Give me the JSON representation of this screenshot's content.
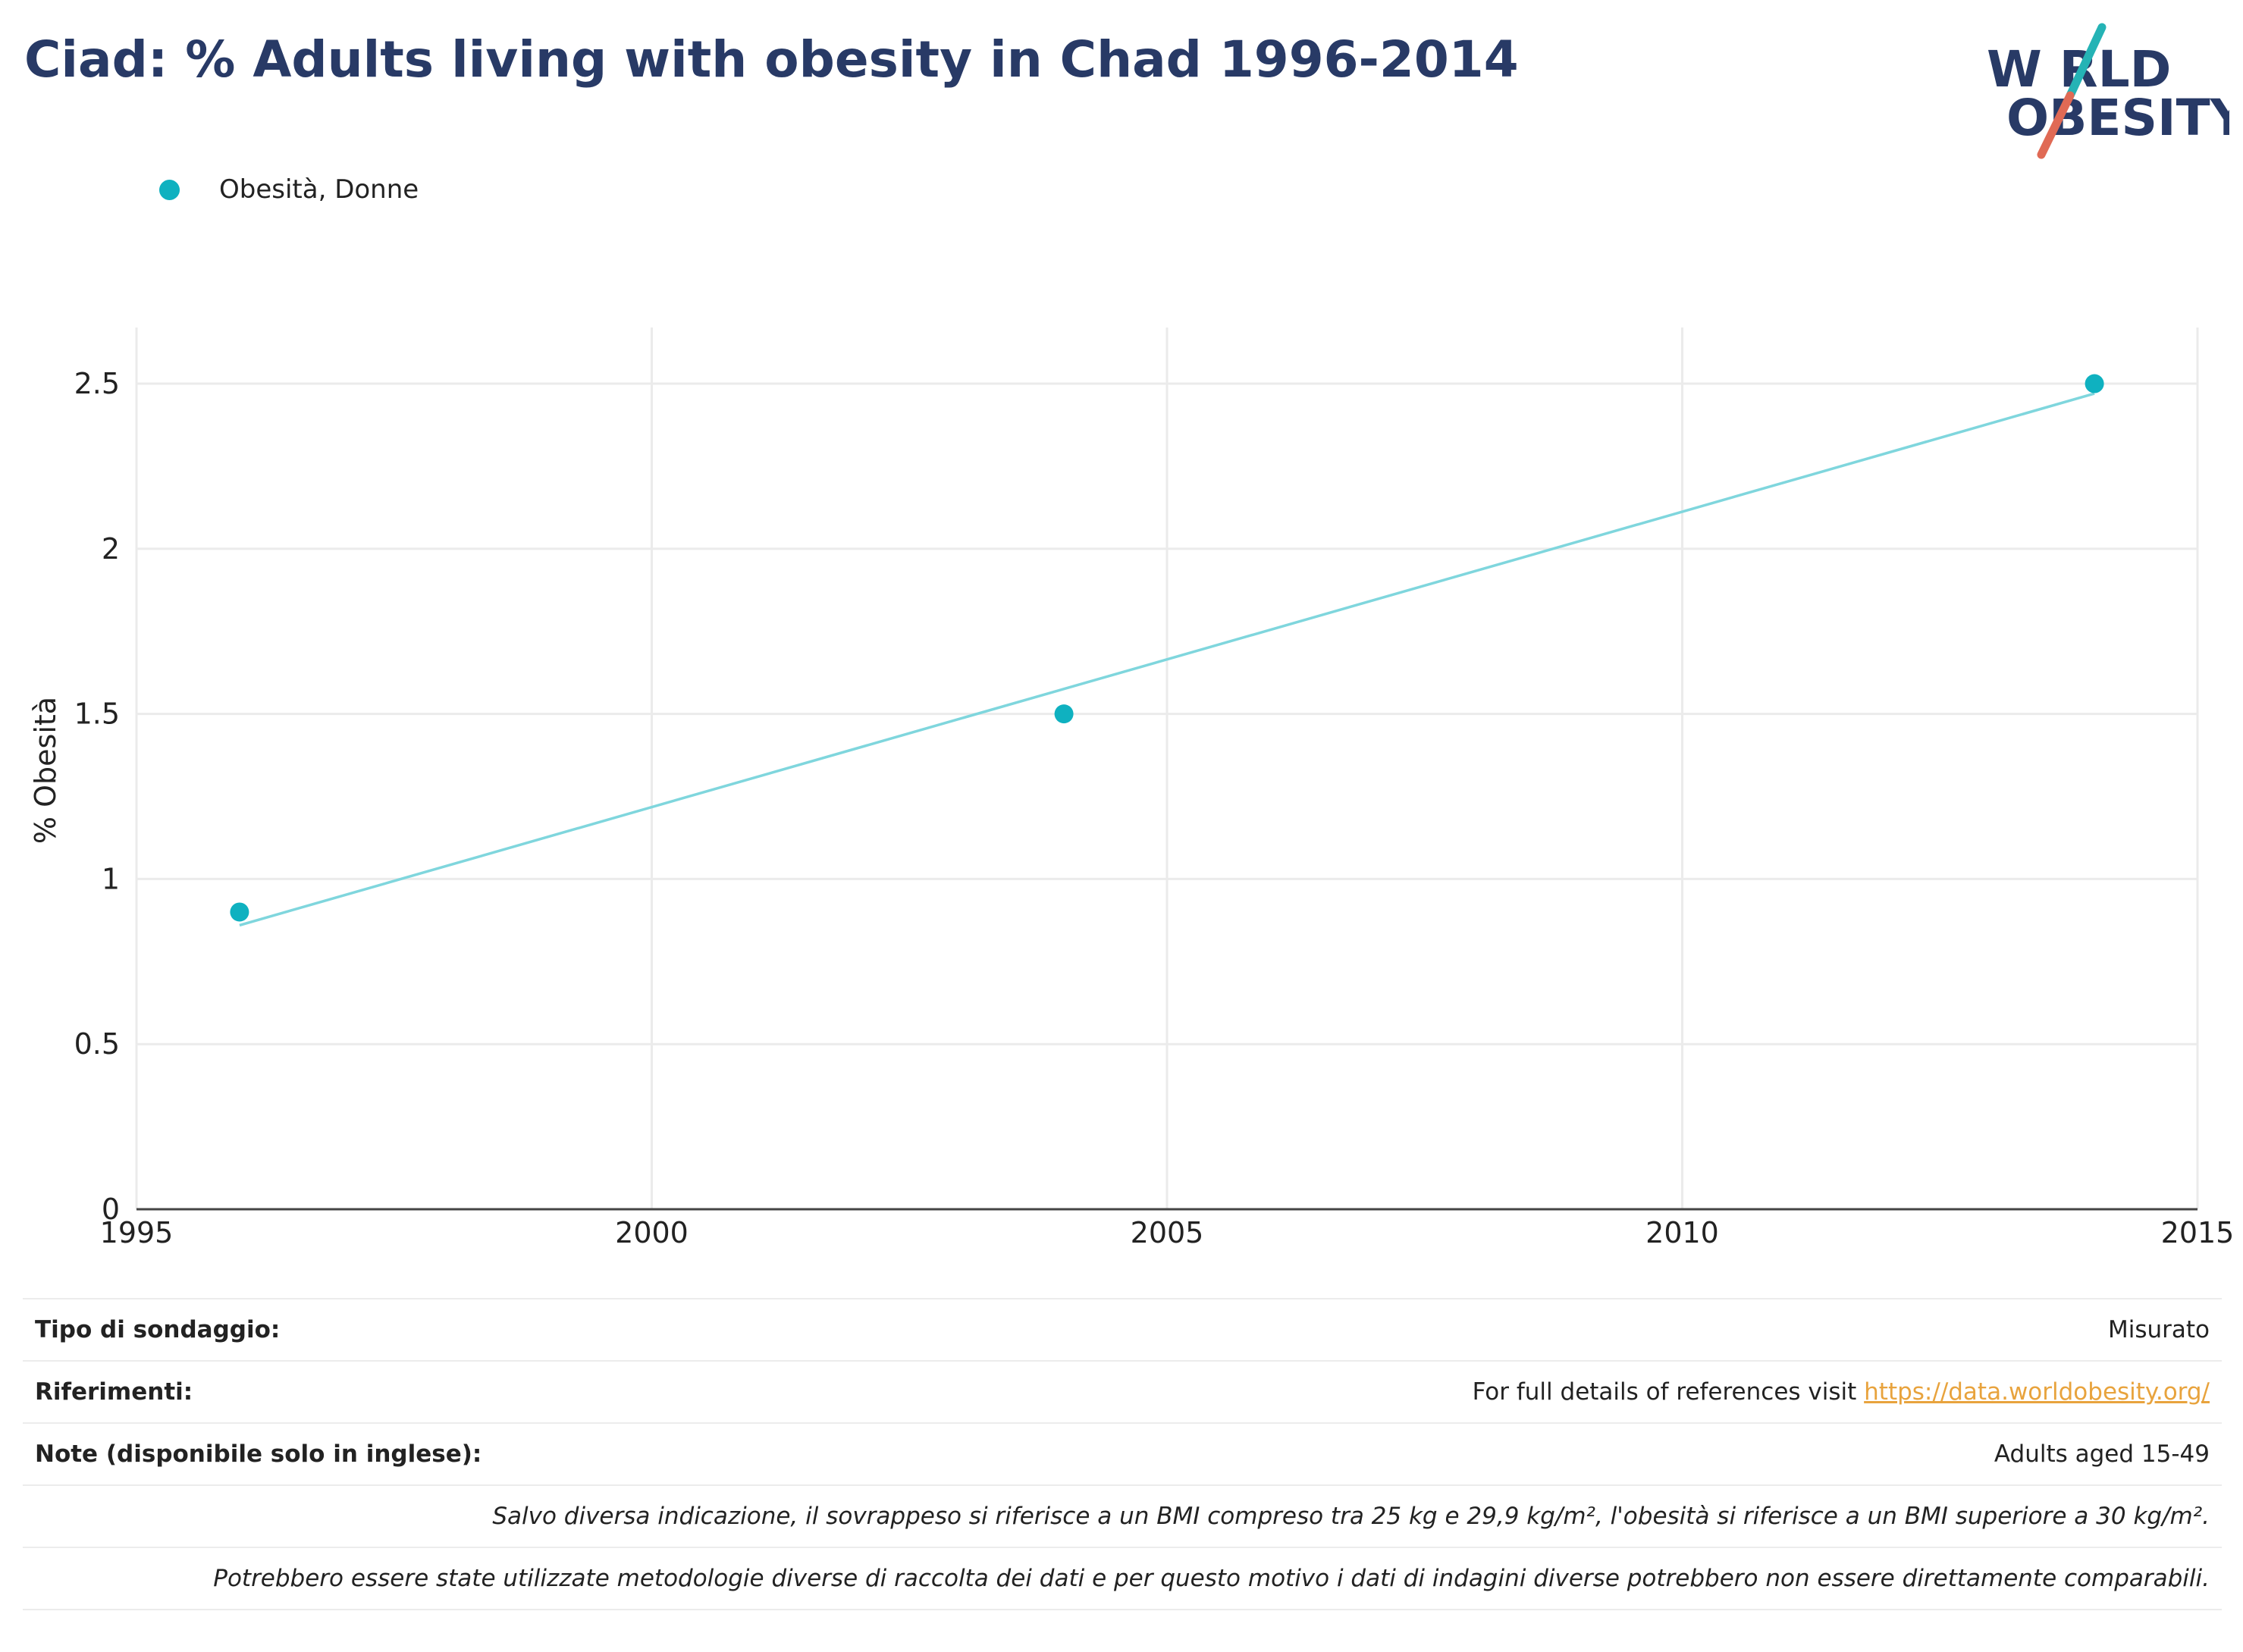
{
  "header": {
    "title": "Ciad: % Adults living with obesity in Chad 1996-2014",
    "logo_line1": "W RLD",
    "logo_line2": "OBESITY"
  },
  "colors": {
    "title": "#283a66",
    "series": "#0fb1c0",
    "trend": "#7fd6dd",
    "logo_teal": "#25b3b5",
    "logo_red": "#e06a55",
    "link": "#e8a33d"
  },
  "chart_data": {
    "type": "scatter",
    "title": "",
    "xlabel": "",
    "ylabel": "% Obesità",
    "xlim": [
      1995,
      2015
    ],
    "ylim": [
      0,
      2.67
    ],
    "x_ticks": [
      "1995",
      "2000",
      "2005",
      "2010",
      "2015"
    ],
    "y_ticks": [
      "0",
      "0.5",
      "1",
      "1.5",
      "2",
      "2.5"
    ],
    "grid": true,
    "legend_position": "top-left",
    "series": [
      {
        "name": "Obesità, Donne",
        "x": [
          1996,
          2004,
          2014
        ],
        "y": [
          0.9,
          1.5,
          2.5
        ]
      }
    ],
    "trendline": {
      "x": [
        1996,
        2014
      ],
      "y": [
        0.86,
        2.47
      ]
    }
  },
  "info": {
    "survey_label": "Tipo di sondaggio:",
    "survey_value": "Misurato",
    "refs_label": "Riferimenti:",
    "refs_text": "For full details of references visit ",
    "refs_link": "https://data.worldobesity.org/",
    "notes_label": "Note (disponibile solo in inglese):",
    "notes_value": "Adults aged 15-49",
    "note1": "Salvo diversa indicazione, il sovrappeso si riferisce a un BMI compreso tra 25 kg e 29,9 kg/m², l'obesità si riferisce a un BMI superiore a 30 kg/m².",
    "note2": "Potrebbero essere state utilizzate metodologie diverse di raccolta dei dati e per questo motivo i dati di indagini diverse potrebbero non essere direttamente comparabili."
  }
}
